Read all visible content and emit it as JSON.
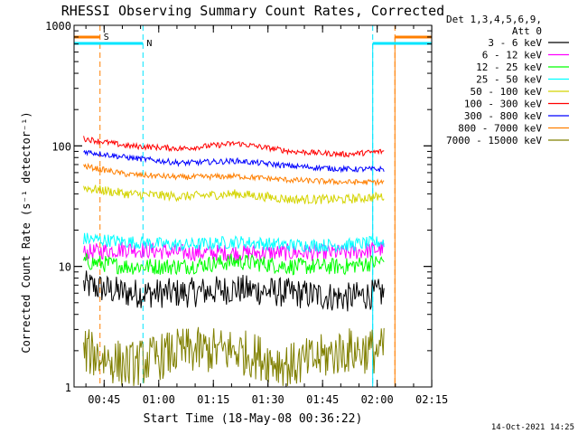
{
  "chart_data": {
    "type": "line",
    "title": "RHESSI Observing Summary Count Rates, Corrected",
    "xlabel": "Start Time (18-May-08 00:36:22)",
    "ylabel": "Corrected Count Rate (s⁻¹ detector⁻¹)",
    "yscale": "log",
    "ylim": [
      1,
      1000
    ],
    "xlim_minutes": [
      0.37,
      98.6
    ],
    "x_ticks": [
      "00:45",
      "01:00",
      "01:15",
      "01:30",
      "01:45",
      "02:00",
      "02:15"
    ],
    "x_tick_minutes": [
      8.63,
      23.63,
      38.63,
      53.63,
      68.63,
      83.63,
      98.63
    ],
    "y_ticks": [
      "1",
      "10",
      "100",
      "1000"
    ],
    "footer": "14-Oct-2021 14:25",
    "legend_header": [
      "Det 1,3,4,5,6,9,",
      "Att 0"
    ],
    "legend_position": "right",
    "markers": {
      "S": {
        "label": "S",
        "color": "#ff7f00",
        "interval_minutes": [
          [
            null,
            7.5
          ],
          [
            88.5,
            null
          ]
        ]
      },
      "N": {
        "label": "N",
        "color": "#00e5ff",
        "interval_minutes": [
          [
            null,
            19.3
          ],
          [
            82.4,
            null
          ]
        ]
      }
    },
    "series": [
      {
        "name": "3 - 6 keV",
        "color": "#000000",
        "x_minutes": [
          3,
          15,
          30,
          45,
          60,
          75,
          85
        ],
        "values": [
          7,
          6,
          6,
          6.5,
          6,
          5.5,
          6
        ]
      },
      {
        "name": "6 - 12 keV",
        "color": "#ff00ff",
        "x_minutes": [
          3,
          15,
          30,
          45,
          60,
          75,
          85
        ],
        "values": [
          13,
          14,
          13,
          13,
          13,
          13,
          14
        ]
      },
      {
        "name": "12 - 25 keV",
        "color": "#00ff00",
        "x_minutes": [
          3,
          15,
          30,
          45,
          60,
          75,
          85
        ],
        "values": [
          11,
          10,
          10,
          11,
          10,
          10,
          11
        ]
      },
      {
        "name": "25 - 50 keV",
        "color": "#00ffff",
        "x_minutes": [
          3,
          15,
          30,
          45,
          60,
          75,
          85
        ],
        "values": [
          17,
          16,
          15,
          16,
          15,
          15,
          16
        ]
      },
      {
        "name": "50 - 100 keV",
        "color": "#d4d400",
        "x_minutes": [
          3,
          15,
          30,
          45,
          60,
          75,
          85
        ],
        "values": [
          45,
          40,
          38,
          40,
          36,
          36,
          38
        ]
      },
      {
        "name": "100 - 300 keV",
        "color": "#ff0000",
        "x_minutes": [
          3,
          15,
          30,
          45,
          60,
          75,
          85
        ],
        "values": [
          115,
          100,
          95,
          105,
          90,
          85,
          90
        ]
      },
      {
        "name": "300 - 800 keV",
        "color": "#0000ff",
        "x_minutes": [
          3,
          15,
          30,
          45,
          60,
          75,
          85
        ],
        "values": [
          90,
          80,
          72,
          75,
          68,
          64,
          64
        ]
      },
      {
        "name": "800 - 7000 keV",
        "color": "#ff7f00",
        "x_minutes": [
          3,
          15,
          30,
          45,
          60,
          75,
          85
        ],
        "values": [
          68,
          58,
          55,
          56,
          52,
          50,
          50
        ]
      },
      {
        "name": "7000 - 15000 keV",
        "color": "#808000",
        "x_minutes": [
          3,
          15,
          30,
          45,
          60,
          75,
          85
        ],
        "values": [
          2,
          1.5,
          2,
          2,
          1.5,
          2,
          2
        ]
      }
    ]
  }
}
